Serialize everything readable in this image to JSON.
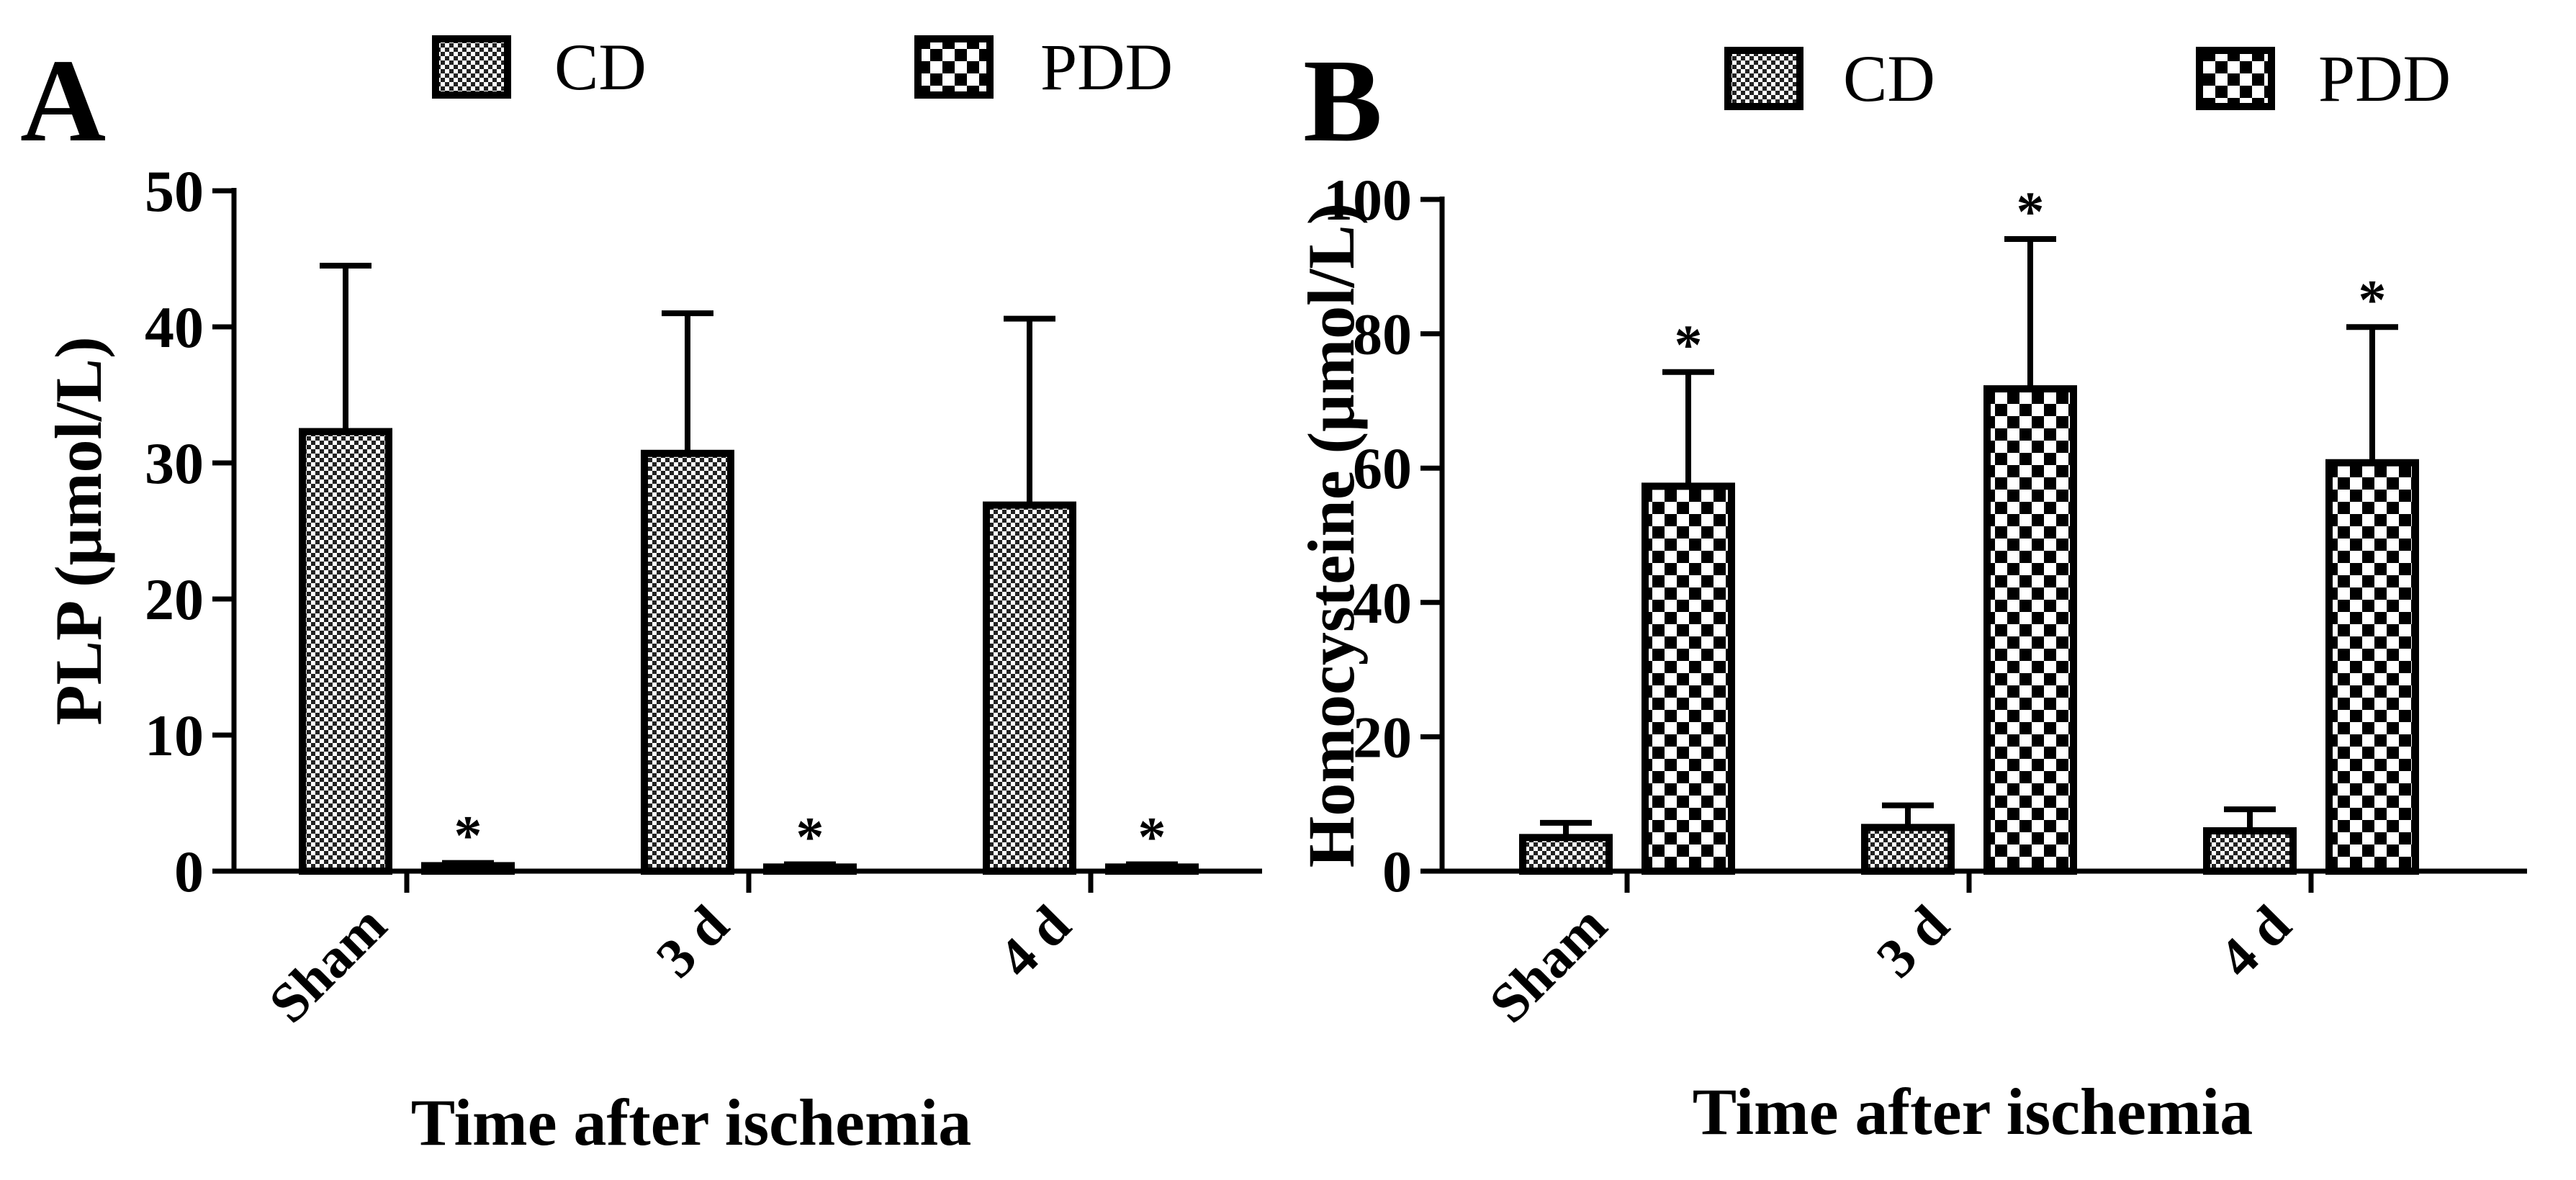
{
  "chart_data": [
    {
      "panel": "A",
      "type": "bar",
      "title": "",
      "xlabel": "Time after ischemia",
      "ylabel": "PLP (μmol/L)",
      "ylim": [
        0,
        50
      ],
      "yticks": [
        "0",
        "10",
        "20",
        "30",
        "40",
        "50"
      ],
      "categories": [
        "Sham",
        "3 d",
        "4 d"
      ],
      "legend": [
        "CD",
        "PDD"
      ],
      "series": [
        {
          "name": "CD",
          "values": [
            32.3,
            30.7,
            26.9
          ],
          "errors": [
            12.2,
            10.3,
            13.7
          ],
          "significance": [
            "",
            "",
            ""
          ]
        },
        {
          "name": "PDD",
          "values": [
            0.4,
            0.3,
            0.3
          ],
          "errors": [
            0.2,
            0.2,
            0.2
          ],
          "significance": [
            "*",
            "*",
            "*"
          ]
        }
      ]
    },
    {
      "panel": "B",
      "type": "bar",
      "title": "",
      "xlabel": "Time after ischemia",
      "ylabel": "Homocysteine (μmol/L)",
      "ylim": [
        0,
        100
      ],
      "yticks": [
        "0",
        "20",
        "40",
        "60",
        "80",
        "100"
      ],
      "categories": [
        "Sham",
        "3 d",
        "4 d"
      ],
      "legend": [
        "CD",
        "PDD"
      ],
      "series": [
        {
          "name": "CD",
          "values": [
            5,
            6.5,
            6
          ],
          "errors": [
            2.2,
            3.3,
            3.2
          ],
          "significance": [
            "",
            "",
            ""
          ]
        },
        {
          "name": "PDD",
          "values": [
            57.3,
            71.8,
            60.8
          ],
          "errors": [
            17,
            22.3,
            20.2
          ],
          "significance": [
            "*",
            "*",
            "*"
          ]
        }
      ]
    }
  ]
}
